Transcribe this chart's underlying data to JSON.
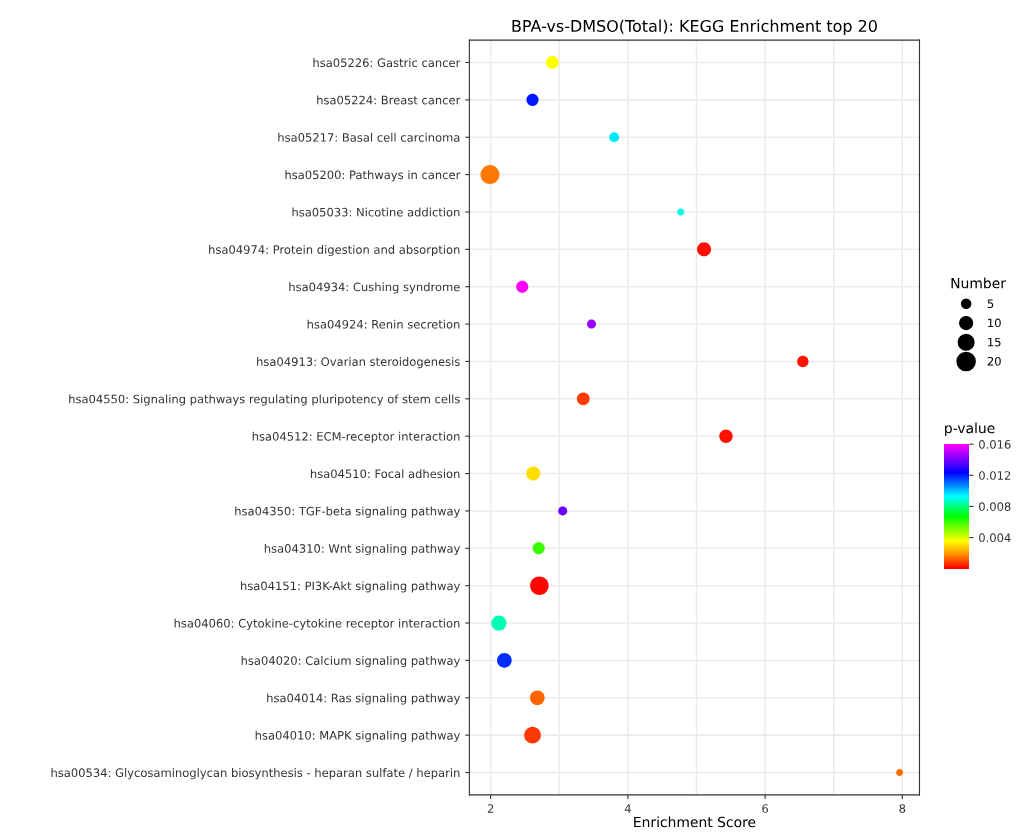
{
  "chart_data": {
    "type": "bubble",
    "title": "BPA-vs-DMSO(Total): KEGG Enrichment top 20",
    "xlabel": "Enrichment Score",
    "legend_title": "Number",
    "clabel": "p-value",
    "categories": [
      "hsa05226: Gastric cancer",
      "hsa05224: Breast cancer",
      "hsa05217: Basal cell carcinoma",
      "hsa05200: Pathways in cancer",
      "hsa05033: Nicotine addiction",
      "hsa04974: Protein digestion and absorption",
      "hsa04934: Cushing syndrome",
      "hsa04924: Renin secretion",
      "hsa04913: Ovarian steroidogenesis",
      "hsa04550: Signaling pathways regulating pluripotency of stem cells",
      "hsa04512: ECM-receptor interaction",
      "hsa04510: Focal adhesion",
      "hsa04350: TGF-beta signaling pathway",
      "hsa04310: Wnt signaling pathway",
      "hsa04151: PI3K-Akt signaling pathway",
      "hsa04060: Cytokine-cytokine receptor interaction",
      "hsa04020: Calcium signaling pathway",
      "hsa04014: Ras signaling pathway",
      "hsa04010: MAPK signaling pathway",
      "hsa00534: Glycosaminoglycan biosynthesis - heparan sulfate / heparin"
    ],
    "values": [
      2.9,
      2.61,
      3.8,
      1.99,
      4.77,
      5.11,
      2.46,
      3.47,
      6.55,
      3.35,
      5.43,
      2.62,
      3.05,
      2.7,
      2.71,
      2.12,
      2.2,
      2.68,
      2.61,
      7.96
    ],
    "sizes": [
      10,
      9,
      6,
      22,
      3,
      12,
      9,
      5,
      8,
      10,
      11,
      12,
      5,
      9,
      21,
      14,
      13,
      13,
      17,
      3
    ],
    "cvalues": [
      0.0035,
      0.012,
      0.0095,
      0.0015,
      0.009,
      0.0002,
      0.016,
      0.0145,
      0.0003,
      0.0008,
      0.0002,
      0.003,
      0.0138,
      0.006,
      0.0001,
      0.0085,
      0.0118,
      0.0013,
      0.0007,
      0.0014
    ],
    "size_legend": [
      5,
      10,
      15,
      20
    ],
    "xlim": [
      1.69,
      8.25
    ],
    "xticks": [
      2,
      {
        "value": 3,
        "label": null
      },
      4,
      {
        "value": 5,
        "label": null
      },
      6,
      {
        "value": 7,
        "label": null
      },
      8
    ],
    "clim": [
      0,
      0.016
    ],
    "cticks": [
      0.004,
      0.008,
      0.012,
      0.016
    ],
    "grid": true,
    "orientation": "horizontal"
  }
}
